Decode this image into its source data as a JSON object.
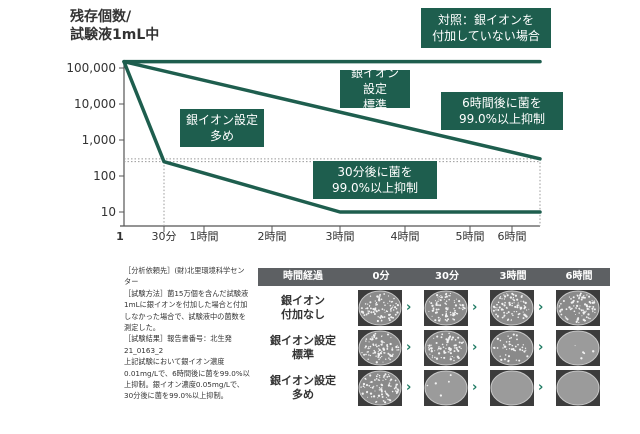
{
  "chart_data": {
    "type": "line",
    "ylabel": "残存個数/\n試験液1mL中",
    "y_scale": "log",
    "ylim": [
      10,
      100000
    ],
    "y_ticks": [
      "100,000",
      "10,000",
      "1,000",
      "100",
      "10"
    ],
    "x_ticks": [
      "1",
      "30分",
      "1時間",
      "2時間",
      "3時間",
      "4時間",
      "5時間",
      "6時間"
    ],
    "series": [
      {
        "x": [
          "0分",
          "6時間"
        ],
        "values": [
          150000,
          150000
        ]
      },
      {
        "x": [
          "0分",
          "6時間"
        ],
        "values": [
          150000,
          300
        ]
      },
      {
        "x": [
          "0分",
          "30分",
          "3時間",
          "6時間"
        ],
        "values": [
          150000,
          250,
          10,
          10
        ]
      }
    ],
    "annotations": [
      "対照：銀イオンを\n付加していない場合",
      "銀イオン設定\n標準",
      "銀イオン設定\n多め",
      "6時間後に菌を\n99.0%以上抑制",
      "30分後に菌を\n99.0%以上抑制"
    ],
    "colors": {
      "line": "#1e5e4e",
      "callout": "#1e5e4e",
      "axis": "#555555",
      "guide": "#999999"
    }
  },
  "notes": [
    "［分析依頼先］(財)北里環境科学センター",
    "［試験方法］菌15万個を含んだ試験液1mLに銀イオンを付加した場合と付加しなかった場合で、試験液中の菌数を測定した。",
    "［試験結果］報告書番号：北生発21_0163_2",
    "上記試験において銀イオン濃度0.01mg/Lで、6時間後に菌を99.0%以上抑制。銀イオン濃度0.05mg/Lで、30分後に菌を99.0%以上抑制。"
  ],
  "table": {
    "header": [
      "時間経過",
      "0分",
      "30分",
      "3時間",
      "6時間"
    ],
    "rows": [
      {
        "label": "銀イオン\n付加なし",
        "density": [
          1.0,
          1.0,
          1.0,
          1.0
        ]
      },
      {
        "label": "銀イオン設定\n標準",
        "density": [
          1.0,
          0.9,
          0.5,
          0.05
        ]
      },
      {
        "label": "銀イオン設定\n多め",
        "density": [
          1.0,
          0.05,
          0.0,
          0.0
        ]
      }
    ],
    "header_color": "#5d6063",
    "arrow_color": "#1e7a62"
  }
}
